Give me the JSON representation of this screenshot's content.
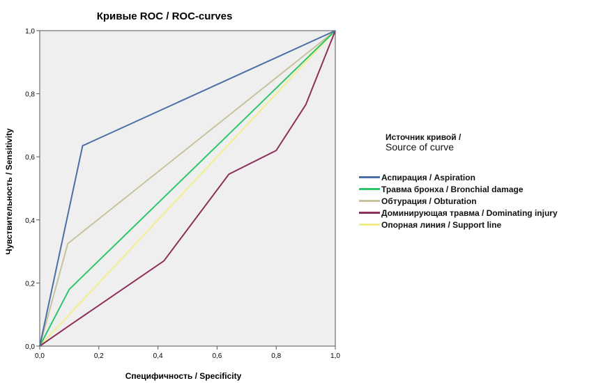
{
  "chart_data": {
    "type": "line",
    "title": "Кривые ROC / ROC-curves",
    "xlabel": "Специфичность / Specificity",
    "ylabel": "Чувствительность / Sensitivity",
    "xlim": [
      0,
      1
    ],
    "ylim": [
      0,
      1
    ],
    "x_ticks": [
      "0,0",
      "0,2",
      "0,4",
      "0,6",
      "0,8",
      "1,0"
    ],
    "y_ticks": [
      "0,0",
      "0,2",
      "0,4",
      "0,6",
      "0,8",
      "1,0"
    ],
    "grid": false,
    "legend_title": "Источник кривой / Source of curve",
    "legend_placement": "right",
    "series": [
      {
        "name": "Аспирация / Aspiration",
        "color": "#4a6fa5",
        "points": [
          [
            0,
            0
          ],
          [
            0.145,
            0.635
          ],
          [
            1,
            1
          ]
        ]
      },
      {
        "name": "Травма бронха / Bronchial damage",
        "color": "#2fc56a",
        "points": [
          [
            0,
            0
          ],
          [
            0.1,
            0.18
          ],
          [
            1,
            1
          ]
        ]
      },
      {
        "name": "Обтурация / Obturation",
        "color": "#c8c29c",
        "points": [
          [
            0,
            0
          ],
          [
            0.095,
            0.325
          ],
          [
            1,
            1
          ]
        ]
      },
      {
        "name": "Доминирующая травма / Dominating injury",
        "color": "#8e2f5a",
        "points": [
          [
            0,
            0
          ],
          [
            0.1,
            0.065
          ],
          [
            0.42,
            0.27
          ],
          [
            0.64,
            0.545
          ],
          [
            0.8,
            0.62
          ],
          [
            0.9,
            0.765
          ],
          [
            1,
            1
          ]
        ]
      },
      {
        "name": "Опорная линия / Support line",
        "color": "#f2ee8c",
        "points": [
          [
            0,
            0
          ],
          [
            1,
            1
          ]
        ]
      }
    ]
  }
}
